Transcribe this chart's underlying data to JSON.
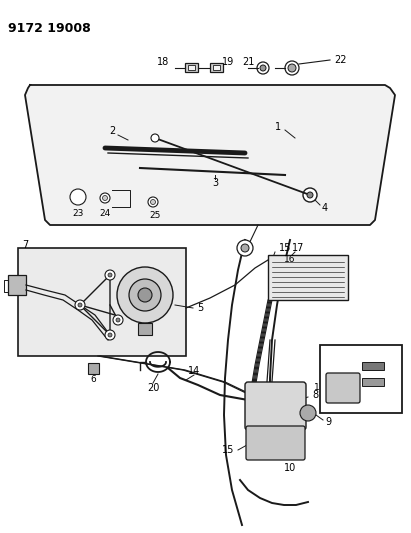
{
  "title": "9172 19008",
  "bg": "#ffffff",
  "lc": "#1a1a1a",
  "tc": "#000000",
  "fw": 4.11,
  "fh": 5.33,
  "dpi": 100
}
